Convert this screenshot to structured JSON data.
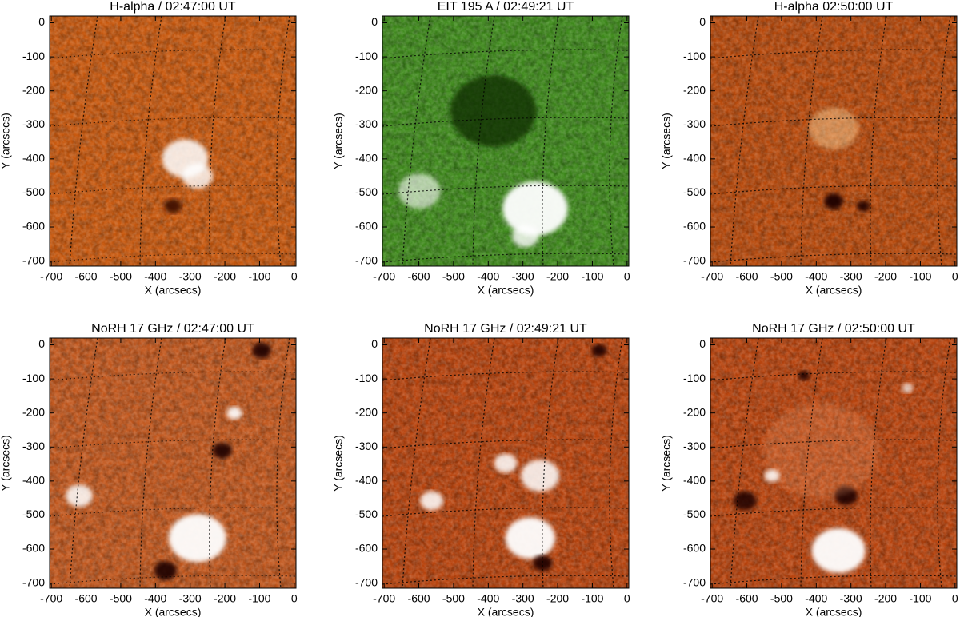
{
  "chart_data": [
    {
      "type": "image",
      "title": "H-alpha / 02:47:00 UT",
      "x_label": "X (arcsecs)",
      "y_label": "Y (arcsecs)",
      "color": "#c8590f",
      "xlim": [
        -705,
        5
      ],
      "ylim": [
        -715,
        20
      ],
      "xticks": [
        -700,
        -600,
        -500,
        -400,
        -300,
        -200,
        -100,
        0
      ],
      "yticks": [
        0,
        -100,
        -200,
        -300,
        -400,
        -500,
        -600,
        -700
      ]
    },
    {
      "type": "image",
      "title": "EIT 195 A / 02:49:21 UT",
      "x_label": "X (arcsecs)",
      "y_label": "Y (arcsecs)",
      "color": "#3f8a1c",
      "xlim": [
        -705,
        5
      ],
      "ylim": [
        -715,
        20
      ],
      "xticks": [
        -700,
        -600,
        -500,
        -400,
        -300,
        -200,
        -100,
        0
      ],
      "yticks": [
        0,
        -100,
        -200,
        -300,
        -400,
        -500,
        -600,
        -700
      ]
    },
    {
      "type": "image",
      "title": "H-alpha 02:50:00 UT",
      "x_label": "X (arcsecs)",
      "y_label": "Y (arcsecs)",
      "color": "#b84a0c",
      "xlim": [
        -705,
        5
      ],
      "ylim": [
        -715,
        20
      ],
      "xticks": [
        -700,
        -600,
        -500,
        -400,
        -300,
        -200,
        -100,
        0
      ],
      "yticks": [
        0,
        -100,
        -200,
        -300,
        -400,
        -500,
        -600,
        -700
      ]
    },
    {
      "type": "image",
      "title": "NoRH 17 GHz / 02:47:00 UT",
      "x_label": "X (arcsecs)",
      "y_label": "Y (arcsecs)",
      "color": "#c2581e",
      "xlim": [
        -705,
        5
      ],
      "ylim": [
        -715,
        20
      ],
      "xticks": [
        -700,
        -600,
        -500,
        -400,
        -300,
        -200,
        -100,
        0
      ],
      "yticks": [
        0,
        -100,
        -200,
        -300,
        -400,
        -500,
        -600,
        -700
      ]
    },
    {
      "type": "image",
      "title": "NoRH 17 GHz / 02:49:21 UT",
      "x_label": "X (arcsecs)",
      "y_label": "Y (arcsecs)",
      "color": "#b8440e",
      "xlim": [
        -705,
        5
      ],
      "ylim": [
        -715,
        20
      ],
      "xticks": [
        -700,
        -600,
        -500,
        -400,
        -300,
        -200,
        -100,
        0
      ],
      "yticks": [
        0,
        -100,
        -200,
        -300,
        -400,
        -500,
        -600,
        -700
      ]
    },
    {
      "type": "image",
      "title": "NoRH 17 GHz / 02:50:00 UT",
      "x_label": "X (arcsecs)",
      "y_label": "Y (arcsecs)",
      "color": "#b8440e",
      "xlim": [
        -705,
        5
      ],
      "ylim": [
        -715,
        20
      ],
      "xticks": [
        -700,
        -600,
        -500,
        -400,
        -300,
        -200,
        -100,
        0
      ],
      "yticks": [
        0,
        -100,
        -200,
        -300,
        -400,
        -500,
        -600,
        -700
      ]
    }
  ]
}
